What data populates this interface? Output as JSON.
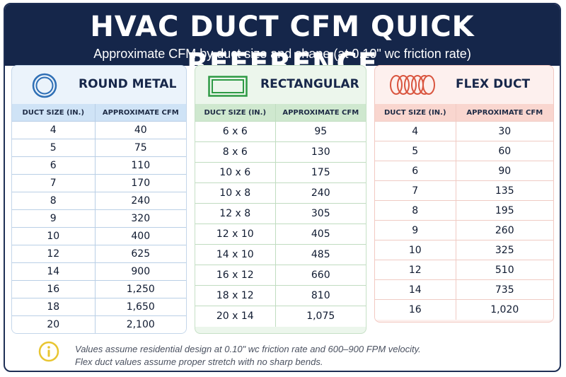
{
  "header": {
    "title": "HVAC DUCT CFM QUICK REFERENCE",
    "subtitle": "Approximate CFM by duct size and shape (at 0.10\" wc friction rate)"
  },
  "panels": {
    "round": {
      "title": "ROUND METAL",
      "icon": "round-duct-icon",
      "col1": "DUCT SIZE (IN.)",
      "col2": "APPROXIMATE CFM",
      "rows": [
        [
          "4",
          "40"
        ],
        [
          "5",
          "75"
        ],
        [
          "6",
          "110"
        ],
        [
          "7",
          "170"
        ],
        [
          "8",
          "240"
        ],
        [
          "9",
          "320"
        ],
        [
          "10",
          "400"
        ],
        [
          "12",
          "625"
        ],
        [
          "14",
          "900"
        ],
        [
          "16",
          "1,250"
        ],
        [
          "18",
          "1,650"
        ],
        [
          "20",
          "2,100"
        ]
      ]
    },
    "rect": {
      "title": "RECTANGULAR",
      "icon": "rectangular-duct-icon",
      "col1": "DUCT SIZE (IN.)",
      "col2": "APPROXIMATE CFM",
      "rows": [
        [
          "6 x 6",
          "95"
        ],
        [
          "8 x 6",
          "130"
        ],
        [
          "10 x 6",
          "175"
        ],
        [
          "10 x 8",
          "240"
        ],
        [
          "12 x 8",
          "305"
        ],
        [
          "12 x 10",
          "405"
        ],
        [
          "14 x 10",
          "485"
        ],
        [
          "16 x 12",
          "660"
        ],
        [
          "18 x 12",
          "810"
        ],
        [
          "20 x 14",
          "1,075"
        ]
      ]
    },
    "flex": {
      "title": "FLEX DUCT",
      "icon": "flex-duct-icon",
      "col1": "DUCT SIZE (IN.)",
      "col2": "APPROXIMATE CFM",
      "rows": [
        [
          "4",
          "30"
        ],
        [
          "5",
          "60"
        ],
        [
          "6",
          "90"
        ],
        [
          "7",
          "135"
        ],
        [
          "8",
          "195"
        ],
        [
          "9",
          "260"
        ],
        [
          "10",
          "325"
        ],
        [
          "12",
          "510"
        ],
        [
          "14",
          "735"
        ],
        [
          "16",
          "1,020"
        ]
      ]
    }
  },
  "footer": {
    "icon": "info-icon",
    "note1": "Values assume residential design at 0.10\" wc friction rate and 600–900 FPM velocity.",
    "note2": "Flex duct values assume proper stretch with no sharp bends."
  },
  "colors": {
    "header_bg": "#15264a",
    "round_accent": "#2f6fb5",
    "rect_accent": "#2e9a45",
    "flex_accent": "#d9553f",
    "info_accent": "#e8c531"
  }
}
